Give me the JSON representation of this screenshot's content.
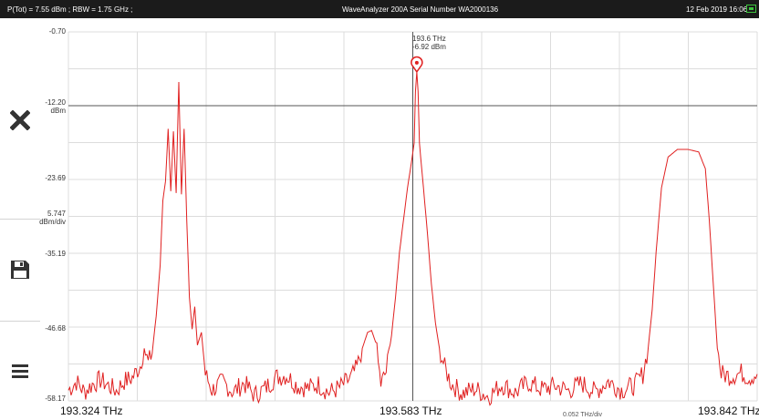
{
  "status_bar": {
    "power_rbw": "P(Tot) = 7.55 dBm ; RBW = 1.75 GHz ;",
    "instrument": "WaveAnalyzer 200A Serial Number WA2000136",
    "datetime": "12 Feb 2019 16:06"
  },
  "sidebar": {
    "close_icon": "close-icon",
    "save_icon": "save-icon",
    "menu_icon": "menu-icon"
  },
  "y_axis": {
    "ticks": [
      "-0.70",
      "-12.20",
      "-23.69",
      "-35.19",
      "-46.68",
      "-58.17"
    ],
    "ref_unit": "dBm",
    "scale_value": "5.747",
    "scale_unit": "dBm/div"
  },
  "x_axis": {
    "left": "193.324 THz",
    "center": "193.583 THz",
    "right": "193.842 THz",
    "per_div": "0.052 THz/div"
  },
  "marker": {
    "frequency": "193.6 THz",
    "power": "-6.92 dBm"
  },
  "colors": {
    "trace": "#e02020",
    "grid": "#dcdcdc",
    "marker_line": "#555555"
  },
  "chart_data": {
    "type": "line",
    "xlabel": "",
    "ylabel": "",
    "xlim": [
      193.324,
      193.842
    ],
    "ylim": [
      -58.17,
      -0.7
    ],
    "grid": true,
    "series": [
      {
        "values": [
          [
            193.324,
            -56.5
          ],
          [
            193.33,
            -55.2
          ],
          [
            193.336,
            -56.8
          ],
          [
            193.342,
            -55.6
          ],
          [
            193.348,
            -54.9
          ],
          [
            193.354,
            -55.8
          ],
          [
            193.36,
            -56.6
          ],
          [
            193.366,
            -55.1
          ],
          [
            193.372,
            -54.6
          ],
          [
            193.378,
            -52.7
          ],
          [
            193.381,
            -50.0
          ],
          [
            193.384,
            -52.3
          ],
          [
            193.387,
            -50.6
          ],
          [
            193.39,
            -45.0
          ],
          [
            193.393,
            -37.0
          ],
          [
            193.395,
            -27.0
          ],
          [
            193.397,
            -24.0
          ],
          [
            193.399,
            -15.8
          ],
          [
            193.401,
            -25.5
          ],
          [
            193.403,
            -16.2
          ],
          [
            193.405,
            -25.8
          ],
          [
            193.407,
            -8.5
          ],
          [
            193.409,
            -26.0
          ],
          [
            193.411,
            -15.8
          ],
          [
            193.413,
            -30.0
          ],
          [
            193.415,
            -42.0
          ],
          [
            193.417,
            -47.0
          ],
          [
            193.419,
            -43.5
          ],
          [
            193.421,
            -49.5
          ],
          [
            193.424,
            -47.5
          ],
          [
            193.427,
            -54.0
          ],
          [
            193.432,
            -56.5
          ],
          [
            193.44,
            -55.2
          ],
          [
            193.448,
            -56.8
          ],
          [
            193.456,
            -55.4
          ],
          [
            193.464,
            -57.3
          ],
          [
            193.472,
            -56.2
          ],
          [
            193.48,
            -54.5
          ],
          [
            193.488,
            -54.2
          ],
          [
            193.496,
            -55.8
          ],
          [
            193.504,
            -56.2
          ],
          [
            193.512,
            -55.6
          ],
          [
            193.52,
            -56.9
          ],
          [
            193.528,
            -56.1
          ],
          [
            193.536,
            -54.7
          ],
          [
            193.541,
            -53.0
          ],
          [
            193.545,
            -50.0
          ],
          [
            193.549,
            -47.5
          ],
          [
            193.552,
            -47.2
          ],
          [
            193.555,
            -49.0
          ],
          [
            193.559,
            -55.6
          ],
          [
            193.563,
            -53.6
          ],
          [
            193.567,
            -48.0
          ],
          [
            193.57,
            -42.0
          ],
          [
            193.573,
            -35.0
          ],
          [
            193.576,
            -30.0
          ],
          [
            193.579,
            -25.0
          ],
          [
            193.582,
            -21.0
          ],
          [
            193.584,
            -18.0
          ],
          [
            193.585,
            -10.0
          ],
          [
            193.586,
            -6.92
          ],
          [
            193.587,
            -10.0
          ],
          [
            193.588,
            -18.0
          ],
          [
            193.591,
            -25.0
          ],
          [
            193.594,
            -32.0
          ],
          [
            193.597,
            -40.0
          ],
          [
            193.6,
            -46.0
          ],
          [
            193.603,
            -50.0
          ],
          [
            193.607,
            -53.0
          ],
          [
            193.612,
            -55.5
          ],
          [
            193.62,
            -57.0
          ],
          [
            193.63,
            -56.3
          ],
          [
            193.64,
            -57.5
          ],
          [
            193.65,
            -55.6
          ],
          [
            193.66,
            -56.9
          ],
          [
            193.67,
            -55.3
          ],
          [
            193.68,
            -56.4
          ],
          [
            193.69,
            -55.8
          ],
          [
            193.7,
            -56.6
          ],
          [
            193.71,
            -55.4
          ],
          [
            193.72,
            -56.8
          ],
          [
            193.73,
            -55.1
          ],
          [
            193.74,
            -56.5
          ],
          [
            193.75,
            -55.7
          ],
          [
            193.756,
            -54.0
          ],
          [
            193.76,
            -50.0
          ],
          [
            193.763,
            -44.0
          ],
          [
            193.766,
            -35.0
          ],
          [
            193.77,
            -25.0
          ],
          [
            193.775,
            -20.2
          ],
          [
            193.782,
            -19.0
          ],
          [
            193.79,
            -19.0
          ],
          [
            193.798,
            -19.4
          ],
          [
            193.803,
            -22.0
          ],
          [
            193.806,
            -30.0
          ],
          [
            193.809,
            -40.0
          ],
          [
            193.812,
            -50.0
          ],
          [
            193.815,
            -54.0
          ],
          [
            193.822,
            -54.3
          ],
          [
            193.83,
            -53.8
          ],
          [
            193.836,
            -54.5
          ],
          [
            193.842,
            -54.0
          ]
        ]
      }
    ]
  }
}
